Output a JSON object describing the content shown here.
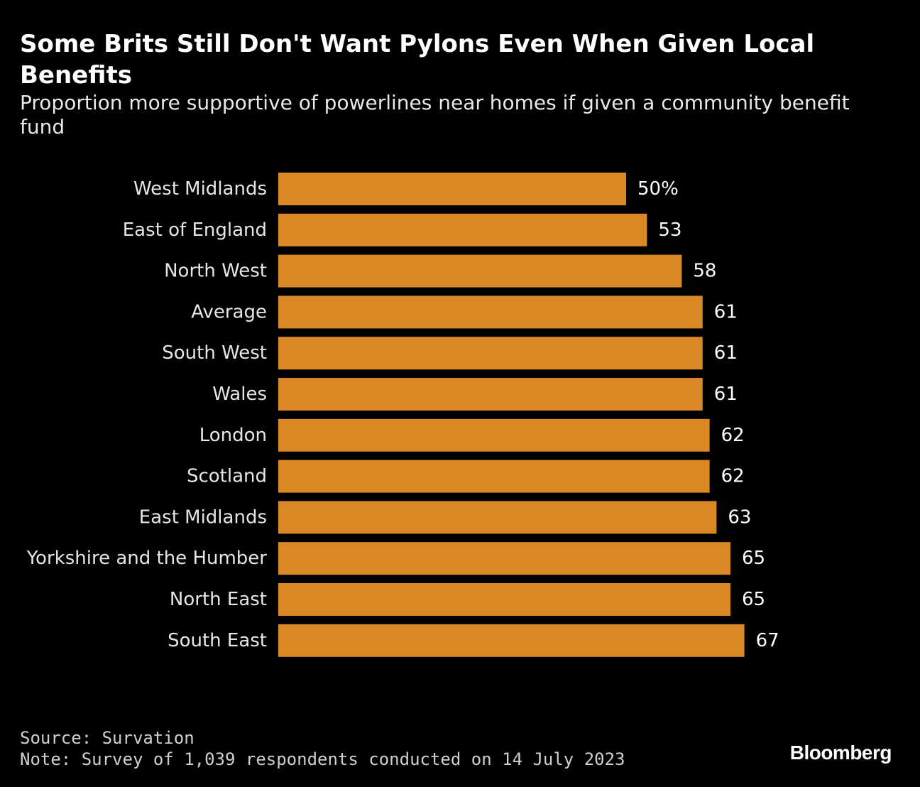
{
  "header": {
    "title": "Some Brits Still Don't Want Pylons Even When Given Local Benefits",
    "subtitle": "Proportion more supportive of powerlines near homes if given a community benefit fund"
  },
  "footer": {
    "source": "Source: Survation",
    "note": "Note: Survey of 1,039 respondents conducted on 14 July 2023",
    "brand": "Bloomberg"
  },
  "colors": {
    "background": "#000000",
    "bar": "#DA8825",
    "text": "#FFFFFF"
  },
  "chart_data": {
    "type": "bar",
    "orientation": "horizontal",
    "title": "Some Brits Still Don't Want Pylons Even When Given Local Benefits",
    "subtitle": "Proportion more supportive of powerlines near homes if given a community benefit fund",
    "xlabel": "",
    "ylabel": "",
    "unit_suffix_first_label": "%",
    "xlim": [
      0,
      67
    ],
    "grid": false,
    "categories": [
      "West Midlands",
      "East of England",
      "North West",
      "Average",
      "South West",
      "Wales",
      "London",
      "Scotland",
      "East Midlands",
      "Yorkshire and the Humber",
      "North East",
      "South East"
    ],
    "values": [
      50,
      53,
      58,
      61,
      61,
      61,
      62,
      62,
      63,
      65,
      65,
      67
    ],
    "value_labels": [
      "50%",
      "53",
      "58",
      "61",
      "61",
      "61",
      "62",
      "62",
      "63",
      "65",
      "65",
      "67"
    ]
  }
}
